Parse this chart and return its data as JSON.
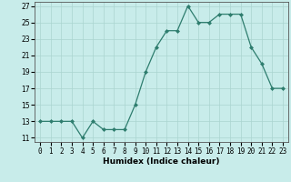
{
  "x": [
    0,
    1,
    2,
    3,
    4,
    5,
    6,
    7,
    8,
    9,
    10,
    11,
    12,
    13,
    14,
    15,
    16,
    17,
    18,
    19,
    20,
    21,
    22,
    23
  ],
  "y": [
    13,
    13,
    13,
    13,
    11,
    13,
    12,
    12,
    12,
    15,
    19,
    22,
    24,
    24,
    27,
    25,
    25,
    26,
    26,
    26,
    22,
    20,
    17,
    17
  ],
  "xlabel": "Humidex (Indice chaleur)",
  "ylim_min": 10.5,
  "ylim_max": 27.5,
  "xlim_min": -0.5,
  "xlim_max": 23.5,
  "yticks": [
    11,
    13,
    15,
    17,
    19,
    21,
    23,
    25,
    27
  ],
  "xtick_labels": [
    "0",
    "1",
    "2",
    "3",
    "4",
    "5",
    "6",
    "7",
    "8",
    "9",
    "10",
    "11",
    "12",
    "13",
    "14",
    "15",
    "16",
    "17",
    "18",
    "19",
    "20",
    "21",
    "22",
    "23"
  ],
  "line_color": "#2e7d6e",
  "marker_color": "#2e7d6e",
  "bg_color": "#c8ecea",
  "grid_color": "#aad4d0",
  "xlabel_fontsize": 6.5,
  "tick_fontsize": 5.5,
  "marker_size": 2.0,
  "line_width": 0.9
}
